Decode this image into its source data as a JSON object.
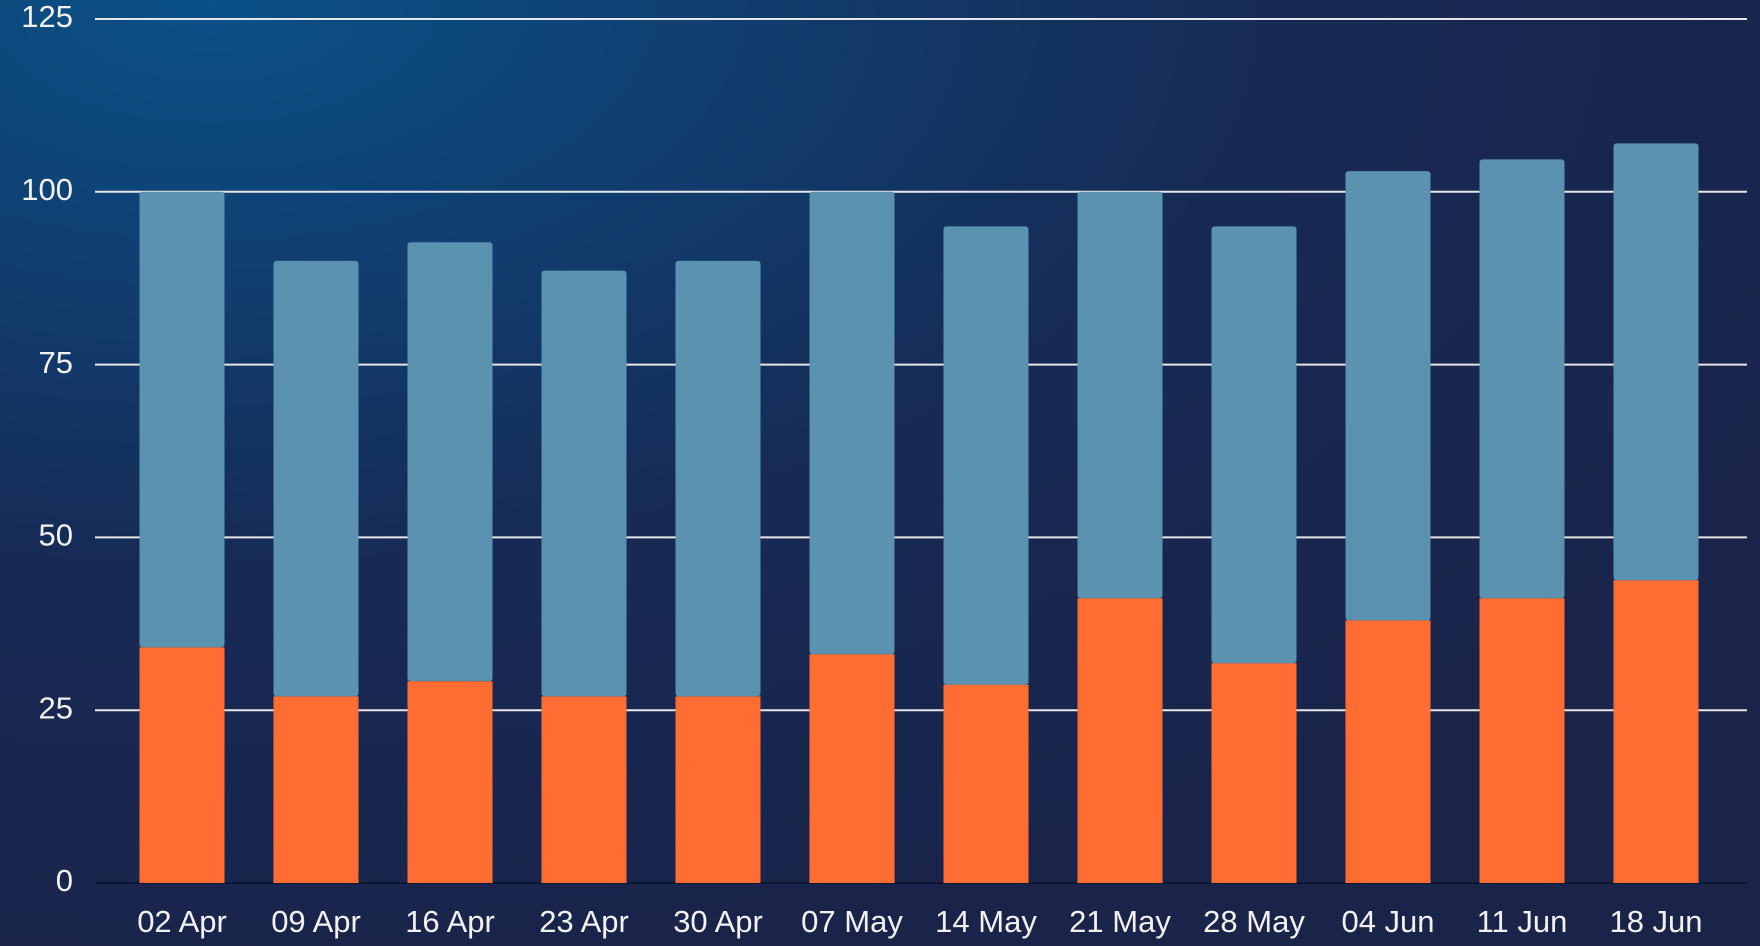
{
  "chart_data": {
    "type": "stacked_bar",
    "categories": [
      "02 Apr",
      "09 Apr",
      "16 Apr",
      "23 Apr",
      "30 Apr",
      "07 May",
      "14 May",
      "21 May",
      "28 May",
      "04 Jun",
      "11 Jun",
      "18 Jun"
    ],
    "series": [
      {
        "color": "#ff6d33",
        "values": [
          34.1,
          27,
          29.2,
          27,
          27,
          33.1,
          28.7,
          41.2,
          31.8,
          38,
          41.2,
          43.8
        ]
      },
      {
        "color": "#5a92b0",
        "values": [
          65.9,
          63,
          63.5,
          61.6,
          63,
          66.9,
          66.3,
          58.8,
          63.2,
          65,
          63.5,
          63.2
        ]
      }
    ],
    "ylim": [
      0,
      125
    ],
    "yticks": [
      0,
      25,
      50,
      75,
      100,
      125
    ],
    "grid": true
  }
}
